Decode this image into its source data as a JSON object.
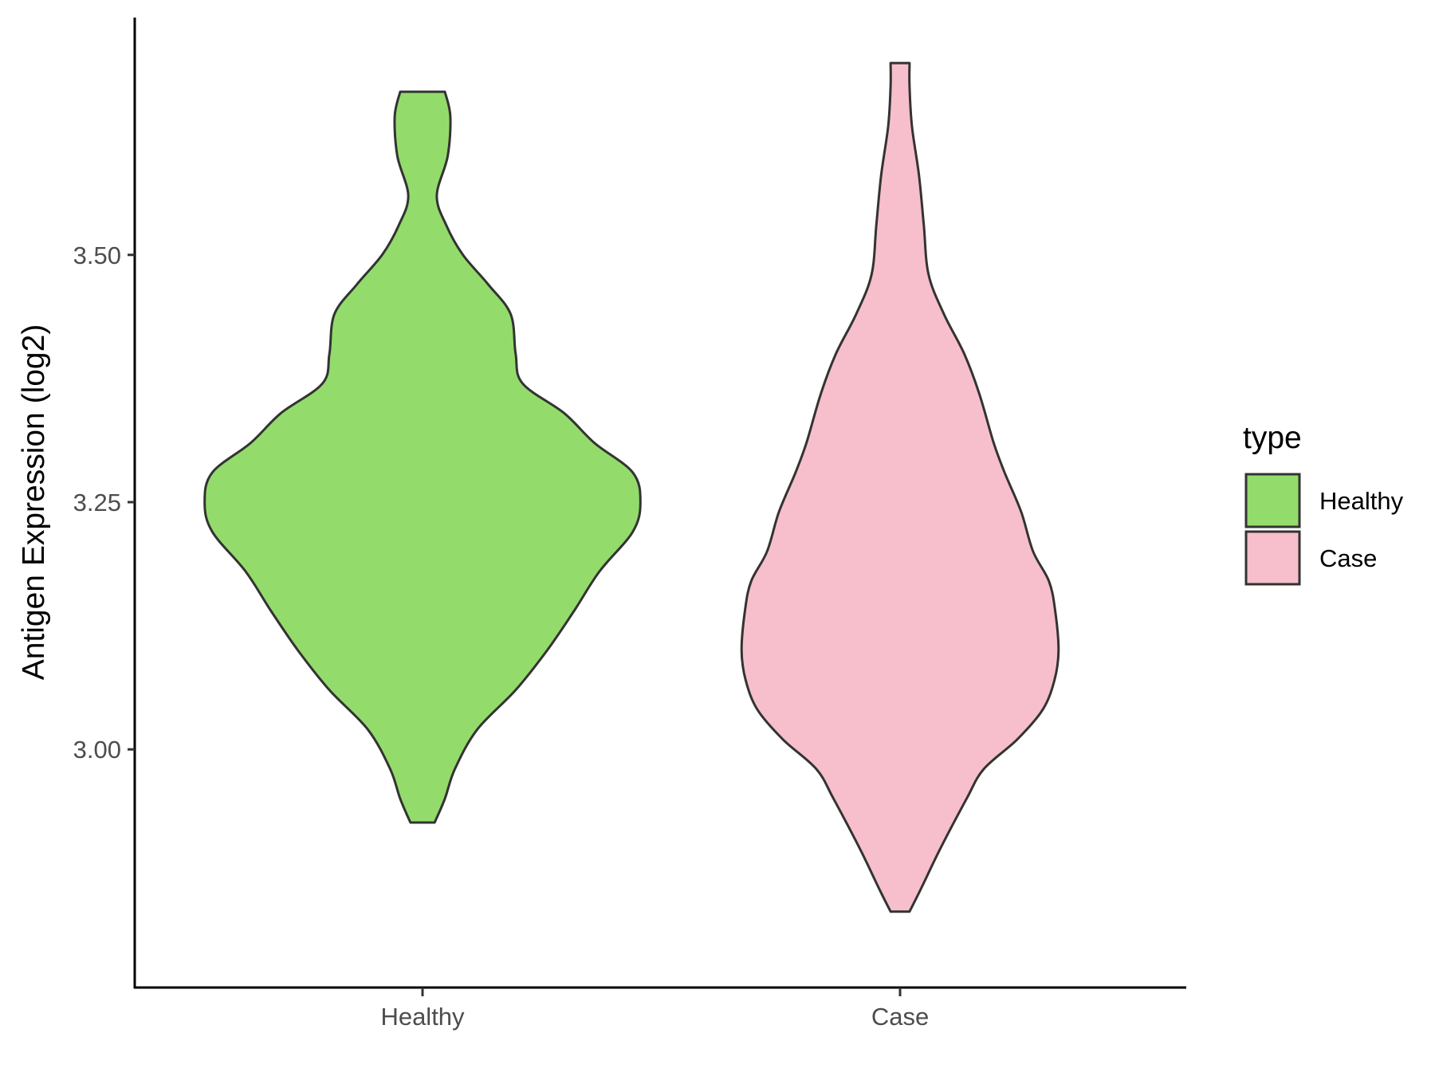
{
  "chart_data": {
    "type": "violin",
    "title": "",
    "xlabel": "",
    "ylabel": "Antigen Expression (log2)",
    "ylim": [
      2.76,
      3.74
    ],
    "yticks": [
      3.0,
      3.25,
      3.5
    ],
    "ytick_labels": [
      "3.00",
      "3.25",
      "3.50"
    ],
    "categories": [
      "Healthy",
      "Case"
    ],
    "grid": false,
    "legend": {
      "title": "type",
      "placement": "right",
      "entries": [
        "Healthy",
        "Case"
      ]
    },
    "series": [
      {
        "name": "Healthy",
        "color": "#93DC6B",
        "min": 2.926,
        "max": 3.665,
        "density": [
          [
            2.926,
            0.051
          ],
          [
            2.95,
            0.094
          ],
          [
            2.98,
            0.136
          ],
          [
            3.02,
            0.23
          ],
          [
            3.06,
            0.392
          ],
          [
            3.1,
            0.524
          ],
          [
            3.14,
            0.638
          ],
          [
            3.18,
            0.745
          ],
          [
            3.22,
            0.885
          ],
          [
            3.25,
            0.917
          ],
          [
            3.28,
            0.885
          ],
          [
            3.31,
            0.723
          ],
          [
            3.34,
            0.596
          ],
          [
            3.37,
            0.421
          ],
          [
            3.4,
            0.392
          ],
          [
            3.44,
            0.371
          ],
          [
            3.47,
            0.277
          ],
          [
            3.5,
            0.17
          ],
          [
            3.53,
            0.1
          ],
          [
            3.56,
            0.06
          ],
          [
            3.6,
            0.106
          ],
          [
            3.64,
            0.117
          ],
          [
            3.665,
            0.094
          ]
        ]
      },
      {
        "name": "Case",
        "color": "#F7BFCB",
        "min": 2.836,
        "max": 3.694,
        "density": [
          [
            2.836,
            0.04
          ],
          [
            2.86,
            0.09
          ],
          [
            2.9,
            0.17
          ],
          [
            2.95,
            0.28
          ],
          [
            2.98,
            0.352
          ],
          [
            3.01,
            0.493
          ],
          [
            3.04,
            0.6
          ],
          [
            3.07,
            0.65
          ],
          [
            3.1,
            0.667
          ],
          [
            3.14,
            0.653
          ],
          [
            3.17,
            0.627
          ],
          [
            3.2,
            0.56
          ],
          [
            3.24,
            0.51
          ],
          [
            3.28,
            0.44
          ],
          [
            3.31,
            0.394
          ],
          [
            3.36,
            0.333
          ],
          [
            3.4,
            0.27
          ],
          [
            3.44,
            0.185
          ],
          [
            3.48,
            0.12
          ],
          [
            3.53,
            0.1
          ],
          [
            3.58,
            0.08
          ],
          [
            3.63,
            0.05
          ],
          [
            3.67,
            0.04
          ],
          [
            3.694,
            0.04
          ]
        ]
      }
    ]
  }
}
